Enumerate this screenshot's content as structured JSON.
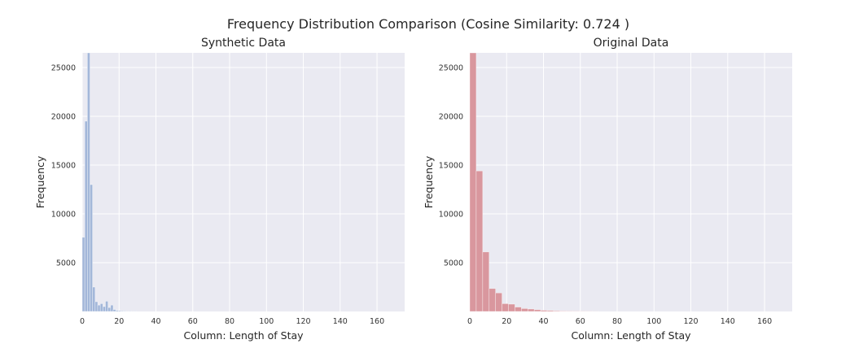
{
  "figure": {
    "suptitle": "Frequency Distribution Comparison (Cosine Similarity: 0.724 )"
  },
  "chart_data": [
    {
      "type": "bar",
      "subtype": "histogram",
      "title": "Synthetic Data",
      "xlabel": "Column: Length of Stay",
      "ylabel": "Frequency",
      "xlim": [
        0,
        175
      ],
      "ylim": [
        0,
        26500
      ],
      "xticks": [
        0,
        20,
        40,
        60,
        80,
        100,
        120,
        140,
        160
      ],
      "yticks": [
        5000,
        10000,
        15000,
        20000,
        25000
      ],
      "grid": true,
      "color": "#a3b7d9",
      "bins": [
        {
          "x0": 0,
          "x1": 1.4,
          "y": 7600
        },
        {
          "x0": 1.4,
          "x1": 2.8,
          "y": 19500
        },
        {
          "x0": 2.8,
          "x1": 4.2,
          "y": 27000
        },
        {
          "x0": 4.2,
          "x1": 5.6,
          "y": 13000
        },
        {
          "x0": 5.6,
          "x1": 7.0,
          "y": 2500
        },
        {
          "x0": 7.0,
          "x1": 8.4,
          "y": 1000
        },
        {
          "x0": 8.4,
          "x1": 9.8,
          "y": 650
        },
        {
          "x0": 9.8,
          "x1": 11.2,
          "y": 800
        },
        {
          "x0": 11.2,
          "x1": 12.6,
          "y": 500
        },
        {
          "x0": 12.6,
          "x1": 14.0,
          "y": 1050
        },
        {
          "x0": 14.0,
          "x1": 15.4,
          "y": 400
        },
        {
          "x0": 15.4,
          "x1": 16.8,
          "y": 650
        },
        {
          "x0": 16.8,
          "x1": 18.2,
          "y": 200
        },
        {
          "x0": 18.2,
          "x1": 19.6,
          "y": 100
        },
        {
          "x0": 19.6,
          "x1": 21.0,
          "y": 80
        },
        {
          "x0": 21.0,
          "x1": 22.4,
          "y": 60
        },
        {
          "x0": 22.4,
          "x1": 23.8,
          "y": 50
        },
        {
          "x0": 25.2,
          "x1": 26.6,
          "y": 40
        },
        {
          "x0": 28.0,
          "x1": 29.4,
          "y": 30
        }
      ]
    },
    {
      "type": "bar",
      "subtype": "histogram",
      "title": "Original Data",
      "xlabel": "Column: Length of Stay",
      "ylabel": "Frequency",
      "xlim": [
        0,
        175
      ],
      "ylim": [
        0,
        26500
      ],
      "xticks": [
        0,
        20,
        40,
        60,
        80,
        100,
        120,
        140,
        160
      ],
      "yticks": [
        5000,
        10000,
        15000,
        20000,
        25000
      ],
      "grid": true,
      "color": "#d9979e",
      "bins": [
        {
          "x0": 0,
          "x1": 3.5,
          "y": 27000
        },
        {
          "x0": 3.5,
          "x1": 7.0,
          "y": 14400
        },
        {
          "x0": 7.0,
          "x1": 10.5,
          "y": 6100
        },
        {
          "x0": 10.5,
          "x1": 14.0,
          "y": 2350
        },
        {
          "x0": 14.0,
          "x1": 17.5,
          "y": 1900
        },
        {
          "x0": 17.5,
          "x1": 21.0,
          "y": 800
        },
        {
          "x0": 21.0,
          "x1": 24.5,
          "y": 750
        },
        {
          "x0": 24.5,
          "x1": 28.0,
          "y": 450
        },
        {
          "x0": 28.0,
          "x1": 31.5,
          "y": 300
        },
        {
          "x0": 31.5,
          "x1": 35.0,
          "y": 250
        },
        {
          "x0": 35.0,
          "x1": 38.5,
          "y": 180
        },
        {
          "x0": 38.5,
          "x1": 42.0,
          "y": 120
        },
        {
          "x0": 42.0,
          "x1": 45.5,
          "y": 100
        },
        {
          "x0": 45.5,
          "x1": 49.0,
          "y": 70
        },
        {
          "x0": 49.0,
          "x1": 52.5,
          "y": 50
        },
        {
          "x0": 52.5,
          "x1": 56.0,
          "y": 40
        },
        {
          "x0": 56.0,
          "x1": 59.5,
          "y": 30
        },
        {
          "x0": 59.5,
          "x1": 63.0,
          "y": 25
        },
        {
          "x0": 63.0,
          "x1": 66.5,
          "y": 20
        },
        {
          "x0": 66.5,
          "x1": 70.0,
          "y": 15
        }
      ]
    }
  ]
}
